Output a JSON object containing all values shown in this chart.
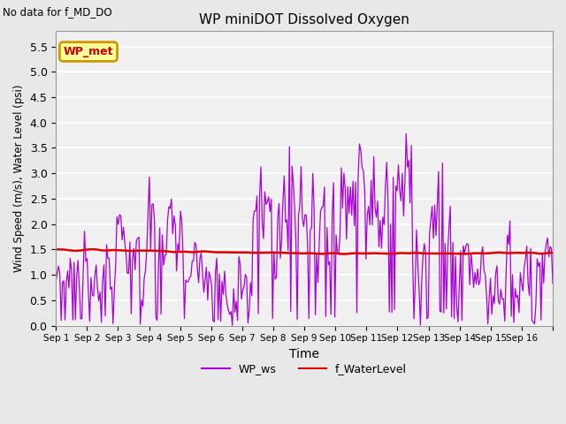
{
  "title": "WP miniDOT Dissolved Oxygen",
  "no_data_text": "No data for f_MD_DO",
  "xlabel": "Time",
  "ylabel": "Wind Speed (m/s), Water Level (psi)",
  "ylim": [
    0.0,
    5.8
  ],
  "yticks": [
    0.0,
    0.5,
    1.0,
    1.5,
    2.0,
    2.5,
    3.0,
    3.5,
    4.0,
    4.5,
    5.0,
    5.5
  ],
  "bg_color": "#e8e8e8",
  "plot_bg_color": "#f0f0f0",
  "wp_ws_color": "#aa00dd",
  "f_wl_color": "#dd0000",
  "legend_label_ws": "WP_ws",
  "legend_label_wl": "f_WaterLevel",
  "wp_met_label": "WP_met",
  "wp_met_text_color": "#cc0000",
  "wp_met_box_color": "#ffff99",
  "wp_met_border_color": "#cc9900",
  "water_level_mean": 1.47,
  "seed": 7
}
